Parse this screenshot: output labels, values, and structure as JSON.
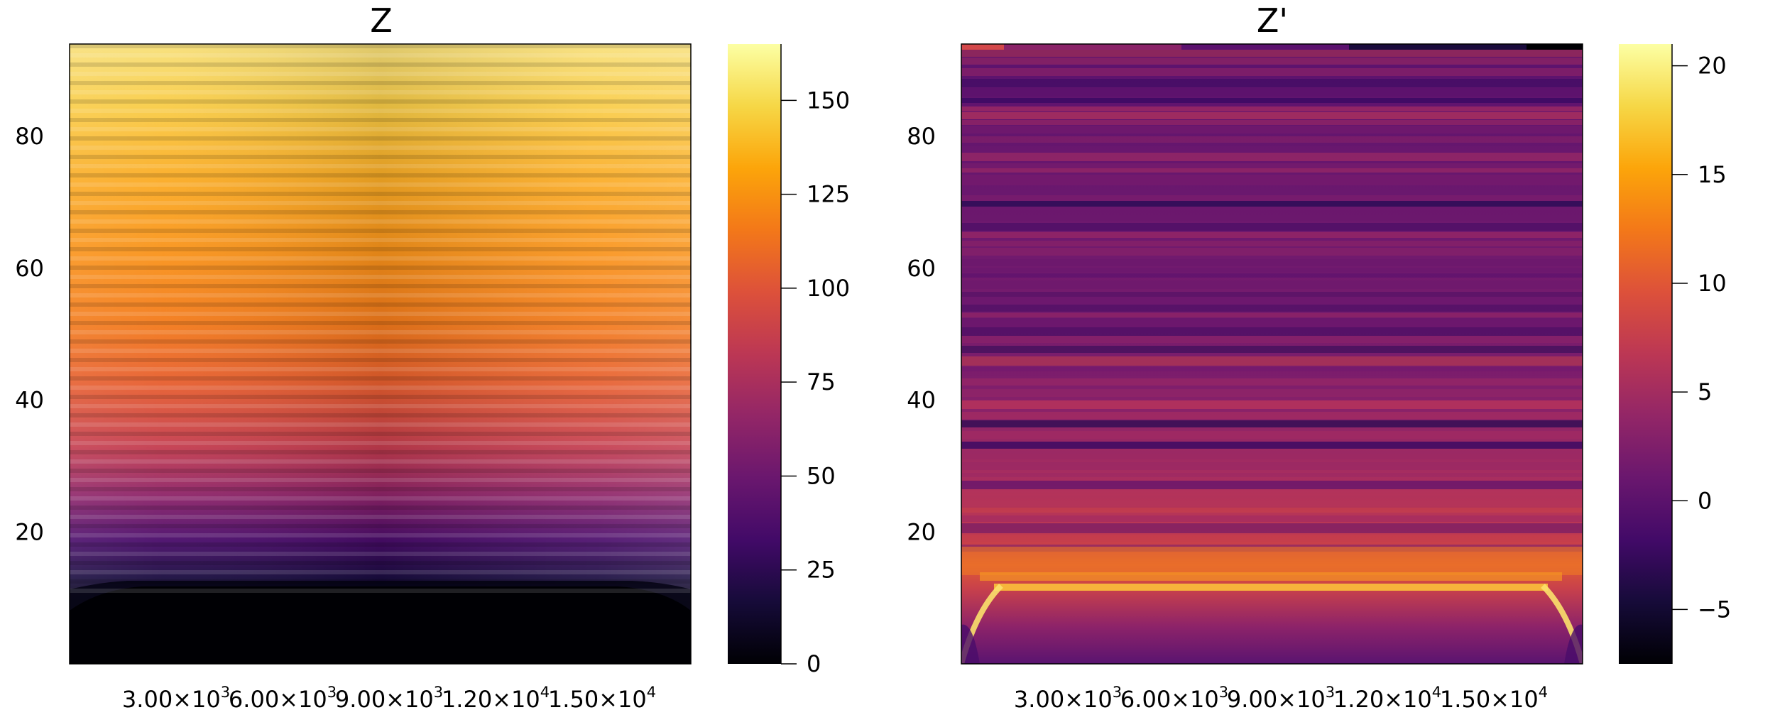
{
  "chart_data": [
    {
      "type": "heatmap",
      "title": "Z",
      "xlabel": "",
      "ylabel": "",
      "x_tick_labels": [
        {
          "mant": "3.00×10",
          "exp": "3"
        },
        {
          "mant": "6.00×10",
          "exp": "3"
        },
        {
          "mant": "9.00×10",
          "exp": "3"
        },
        {
          "mant": "1.20×10",
          "exp": "4"
        },
        {
          "mant": "1.50×10",
          "exp": "4"
        }
      ],
      "x_ticks": [
        3000,
        6000,
        9000,
        12000,
        15000
      ],
      "xlim": [
        0,
        17500
      ],
      "y_ticks": [
        "20",
        "40",
        "60",
        "80"
      ],
      "y_tick_values": [
        20,
        40,
        60,
        80
      ],
      "ylim": [
        0,
        94
      ],
      "colorbar": {
        "colormap": "inferno",
        "range": [
          0,
          165
        ],
        "ticks": [
          "0",
          "25",
          "50",
          "75",
          "100",
          "125",
          "150"
        ],
        "tick_values": [
          0,
          25,
          50,
          75,
          100,
          125,
          150
        ]
      },
      "grid": false
    },
    {
      "type": "heatmap",
      "title": "Z'",
      "xlabel": "",
      "ylabel": "",
      "x_tick_labels": [
        {
          "mant": "3.00×10",
          "exp": "3"
        },
        {
          "mant": "6.00×10",
          "exp": "3"
        },
        {
          "mant": "9.00×10",
          "exp": "3"
        },
        {
          "mant": "1.20×10",
          "exp": "4"
        },
        {
          "mant": "1.50×10",
          "exp": "4"
        }
      ],
      "x_ticks": [
        3000,
        6000,
        9000,
        12000,
        15000
      ],
      "xlim": [
        0,
        17500
      ],
      "y_ticks": [
        "20",
        "40",
        "60",
        "80"
      ],
      "y_tick_values": [
        20,
        40,
        60,
        80
      ],
      "ylim": [
        0,
        94
      ],
      "colorbar": {
        "colormap": "inferno",
        "range": [
          -7.5,
          21
        ],
        "ticks": [
          "−5",
          "0",
          "5",
          "10",
          "15",
          "20"
        ],
        "tick_values": [
          -5,
          0,
          5,
          10,
          15,
          20
        ]
      },
      "grid": false
    }
  ]
}
